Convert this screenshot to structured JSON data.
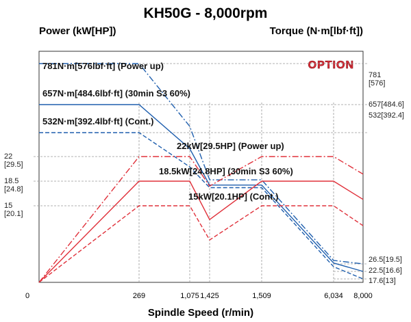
{
  "chart_data": {
    "type": "line",
    "title": "KH50G - 8,000rpm",
    "y_label": "Power (kW[HP])",
    "y2_label": "Torque (N·m[lbf·ft])",
    "x_label": "Spindle Speed (r/min)",
    "badge": "OPTION",
    "x": [
      0,
      269,
      1075,
      1425,
      1509,
      6034,
      8000
    ],
    "xlim": [
      0,
      8000
    ],
    "xticks": [
      0,
      269,
      {
        "value": 1075,
        "label": "1,075"
      },
      {
        "value": 1425,
        "label": "1,425"
      },
      {
        "value": 1509,
        "label": "1,509"
      },
      {
        "value": 6034,
        "label": "6,034"
      },
      {
        "value": 8000,
        "label": "8,000"
      }
    ],
    "ylim": [
      0,
      22
    ],
    "yticks": [
      {
        "value": 15,
        "label": "15\n[20.1]"
      },
      {
        "value": 18.5,
        "label": "18.5\n[24.8]"
      },
      {
        "value": 22,
        "label": "22\n[29.5]"
      }
    ],
    "y2lim": [
      17.6,
      781
    ],
    "y2ticks": [
      {
        "value": 17.6,
        "label": "17.6[13]"
      },
      {
        "value": 22.5,
        "label": "22.5[16.6]"
      },
      {
        "value": 26.5,
        "label": "26.5[19.5]"
      },
      {
        "value": 532,
        "label": "532[392.4]"
      },
      {
        "value": 657,
        "label": "657[484.6]"
      },
      {
        "value": 781,
        "label": "781\n[576]"
      }
    ],
    "grid": true,
    "series": [
      {
        "name": "781N·m[576lbf·ft] (Power up)",
        "color": "#1f5fae",
        "dash": "dashdot",
        "axis": "y2",
        "values": [
          781,
          781,
          560,
          350,
          350,
          40,
          26.5
        ]
      },
      {
        "name": "657N·m[484.6lbf·ft] (30min S3 60%)",
        "color": "#1f5fae",
        "dash": "solid",
        "axis": "y2",
        "values": [
          657,
          657,
          470,
          330,
          330,
          30,
          22.5
        ]
      },
      {
        "name": "532N·m[392.4lbf·ft] (Cont.)",
        "color": "#1f5fae",
        "dash": "dashed",
        "axis": "y2",
        "values": [
          532,
          532,
          400,
          320,
          320,
          25,
          17.6
        ]
      },
      {
        "name": "22kW[29.5HP] (Power up)",
        "color": "#e0303a",
        "dash": "dashdot",
        "axis": "y",
        "values": [
          0,
          22,
          22,
          17.8,
          22,
          22,
          19.5
        ]
      },
      {
        "name": "18.5kW[24.8HP] (30min S3 60%)",
        "color": "#e0303a",
        "dash": "solid",
        "axis": "y",
        "values": [
          0,
          18.5,
          18.5,
          12.3,
          18.5,
          18.5,
          15.9
        ]
      },
      {
        "name": "15kW[20.1HP] (Cont.)",
        "color": "#e0303a",
        "dash": "dashed",
        "axis": "y",
        "values": [
          0,
          15,
          15,
          8.3,
          15,
          15,
          11.1
        ]
      }
    ]
  }
}
